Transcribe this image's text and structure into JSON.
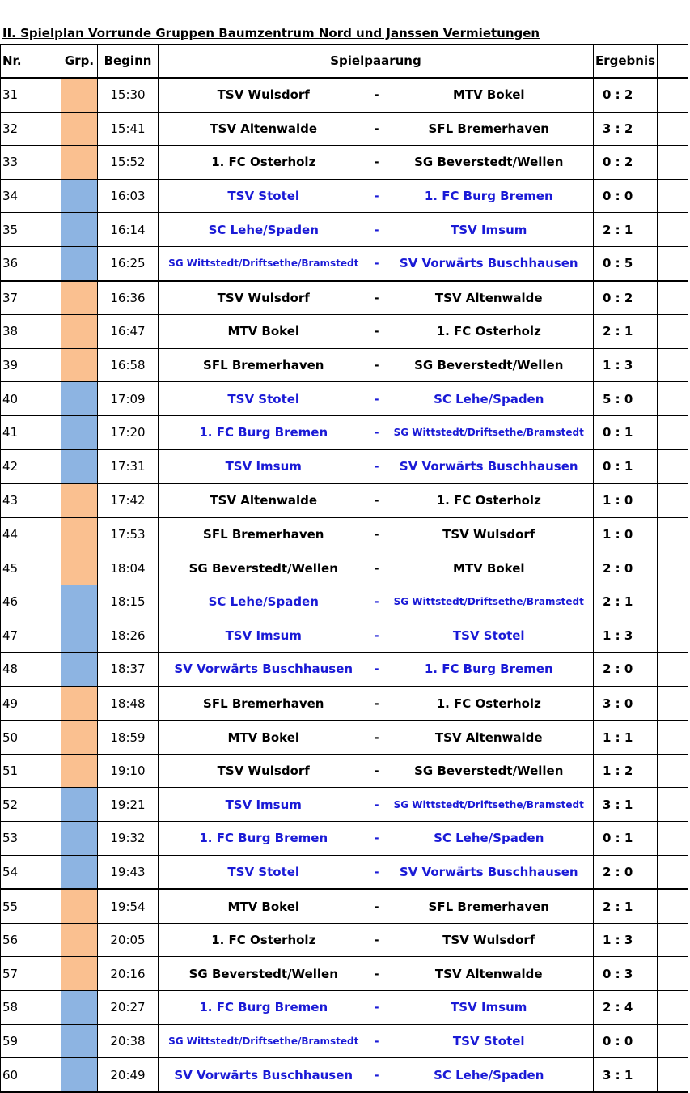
{
  "header": {
    "title": "II. Spielplan Vorrunde Gruppen Baumzentrum Nord und Janssen Vermietungen"
  },
  "table": {
    "columns": [
      "Nr.",
      "Grp.",
      "Beginn",
      "Spielpaarung",
      "Ergebnis"
    ],
    "separator": "-",
    "groups": [
      {
        "fill": "#fac090",
        "text": "#000000"
      },
      {
        "fill": "#8db4e2",
        "text": "#1a1ad6"
      }
    ],
    "rows": [
      [
        31,
        "15:30",
        "TSV Wulsdorf",
        "MTV Bokel",
        "0 : 2",
        0
      ],
      [
        32,
        "15:41",
        "TSV Altenwalde",
        "SFL Bremerhaven",
        "3 : 2",
        0
      ],
      [
        33,
        "15:52",
        "1. FC Osterholz",
        "SG Beverstedt/Wellen",
        "0 : 2",
        0
      ],
      [
        34,
        "16:03",
        "TSV Stotel",
        "1. FC Burg Bremen",
        "0 : 0",
        1
      ],
      [
        35,
        "16:14",
        "SC Lehe/Spaden",
        "TSV Imsum",
        "2 : 1",
        1
      ],
      [
        36,
        "16:25",
        "SG Wittstedt/Driftsethe/Bramstedt",
        "SV Vorwärts Buschhausen",
        "0 : 5",
        1
      ],
      [
        37,
        "16:36",
        "TSV Wulsdorf",
        "TSV Altenwalde",
        "0 : 2",
        0
      ],
      [
        38,
        "16:47",
        "MTV Bokel",
        "1. FC Osterholz",
        "2 : 1",
        0
      ],
      [
        39,
        "16:58",
        "SFL Bremerhaven",
        "SG Beverstedt/Wellen",
        "1 : 3",
        0
      ],
      [
        40,
        "17:09",
        "TSV Stotel",
        "SC Lehe/Spaden",
        "5 : 0",
        1
      ],
      [
        41,
        "17:20",
        "1. FC Burg Bremen",
        "SG Wittstedt/Driftsethe/Bramstedt",
        "0 : 1",
        1
      ],
      [
        42,
        "17:31",
        "TSV Imsum",
        "SV Vorwärts Buschhausen",
        "0 : 1",
        1
      ],
      [
        43,
        "17:42",
        "TSV Altenwalde",
        "1. FC Osterholz",
        "1 : 0",
        0
      ],
      [
        44,
        "17:53",
        "SFL Bremerhaven",
        "TSV Wulsdorf",
        "1 : 0",
        0
      ],
      [
        45,
        "18:04",
        "SG Beverstedt/Wellen",
        "MTV Bokel",
        "2 : 0",
        0
      ],
      [
        46,
        "18:15",
        "SC Lehe/Spaden",
        "SG Wittstedt/Driftsethe/Bramstedt",
        "2 : 1",
        1
      ],
      [
        47,
        "18:26",
        "TSV Imsum",
        "TSV Stotel",
        "1 : 3",
        1
      ],
      [
        48,
        "18:37",
        "SV Vorwärts Buschhausen",
        "1. FC Burg Bremen",
        "2 : 0",
        1
      ],
      [
        49,
        "18:48",
        "SFL Bremerhaven",
        "1. FC Osterholz",
        "3 : 0",
        0
      ],
      [
        50,
        "18:59",
        "MTV Bokel",
        "TSV Altenwalde",
        "1 : 1",
        0
      ],
      [
        51,
        "19:10",
        "TSV Wulsdorf",
        "SG Beverstedt/Wellen",
        "1 : 2",
        0
      ],
      [
        52,
        "19:21",
        "TSV Imsum",
        "SG Wittstedt/Driftsethe/Bramstedt",
        "3 : 1",
        1
      ],
      [
        53,
        "19:32",
        "1. FC Burg Bremen",
        "SC Lehe/Spaden",
        "0 : 1",
        1
      ],
      [
        54,
        "19:43",
        "TSV Stotel",
        "SV Vorwärts Buschhausen",
        "2 : 0",
        1
      ],
      [
        55,
        "19:54",
        "MTV Bokel",
        "SFL Bremerhaven",
        "2 : 1",
        0
      ],
      [
        56,
        "20:05",
        "1. FC Osterholz",
        "TSV Wulsdorf",
        "1 : 3",
        0
      ],
      [
        57,
        "20:16",
        "SG Beverstedt/Wellen",
        "TSV Altenwalde",
        "0 : 3",
        0
      ],
      [
        58,
        "20:27",
        "1. FC Burg Bremen",
        "TSV Imsum",
        "2 : 4",
        1
      ],
      [
        59,
        "20:38",
        "SG Wittstedt/Driftsethe/Bramstedt",
        "TSV Stotel",
        "0 : 0",
        1
      ],
      [
        60,
        "20:49",
        "SV Vorwärts Buschhausen",
        "SC Lehe/Spaden",
        "3 : 1",
        1
      ]
    ]
  }
}
